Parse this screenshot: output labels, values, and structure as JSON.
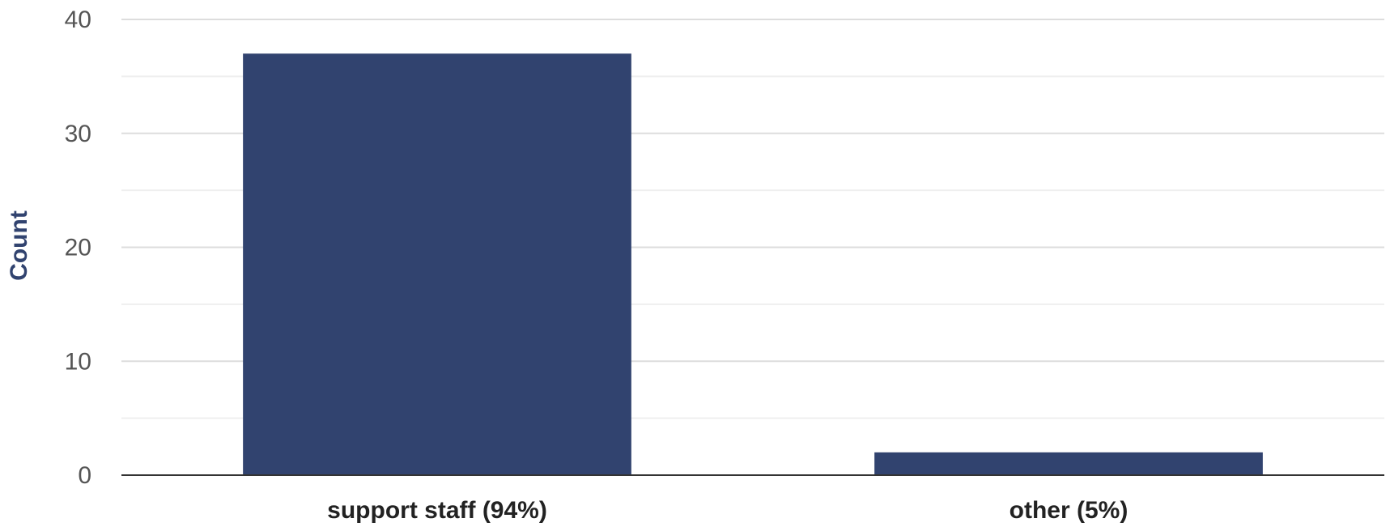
{
  "chart_data": {
    "type": "bar",
    "categories": [
      "support staff (94%)",
      "other (5%)"
    ],
    "values": [
      37,
      2
    ],
    "title": "",
    "xlabel": "",
    "ylabel": "Count",
    "ylim": [
      0,
      40
    ],
    "yticks": [
      "0",
      "10",
      "20",
      "30",
      "40"
    ],
    "grid": true,
    "bar_color": "#31436f"
  }
}
